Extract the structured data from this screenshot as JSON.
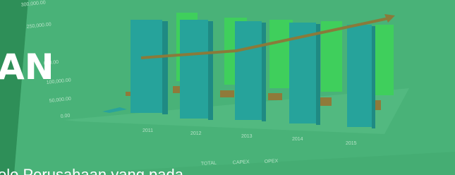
{
  "banner": {
    "heading_fragment": "AN",
    "body_fragment": "olo Perusahaan yang pada"
  },
  "background_chart": {
    "y_labels": [
      "300,000.00",
      "250,000.00",
      "000.00",
      "100,000.00",
      "50,000.00",
      "0.00"
    ],
    "x_labels": [
      "2011",
      "2012",
      "2013",
      "2014",
      "2015"
    ],
    "legend": [
      "TOTAL",
      "CAPEX",
      "OPEX"
    ]
  }
}
